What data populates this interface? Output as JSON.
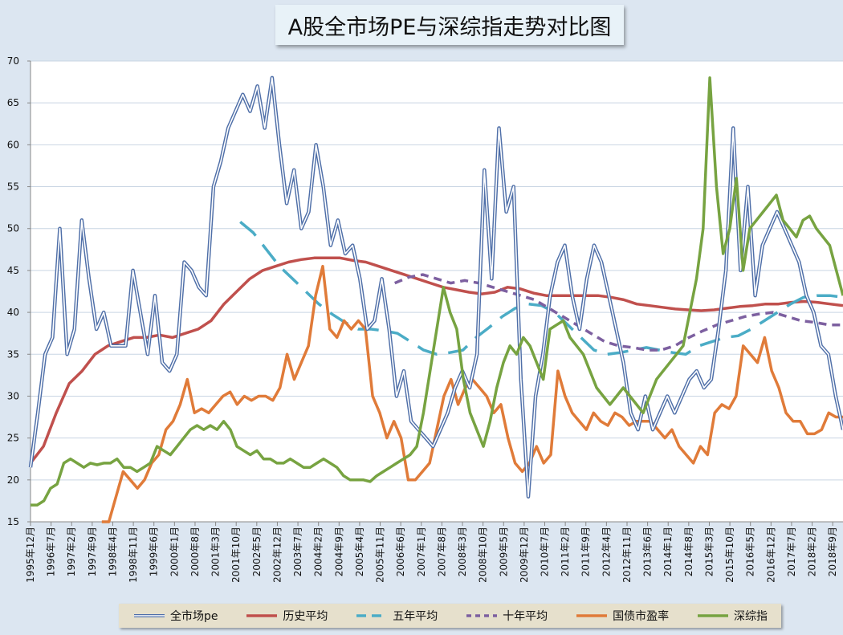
{
  "chart_data": {
    "type": "line",
    "title": "A股全市场PE与深综指走势对比图",
    "ylim": [
      15,
      70
    ],
    "yticks": [
      15,
      20,
      25,
      30,
      35,
      40,
      45,
      50,
      55,
      60,
      65,
      70
    ],
    "x_labels": [
      "1995年12月",
      "1996年7月",
      "1997年2月",
      "1997年9月",
      "1998年4月",
      "1998年11月",
      "1999年6月",
      "2000年1月",
      "2000年8月",
      "2001年3月",
      "2001年10月",
      "2002年5月",
      "2002年12月",
      "2003年7月",
      "2004年2月",
      "2004年9月",
      "2005年4月",
      "2005年11月",
      "2006年6月",
      "2007年1月",
      "2007年8月",
      "2008年3月",
      "2008年10月",
      "2009年5月",
      "2009年12月",
      "2010年7月",
      "2011年2月",
      "2011年9月",
      "2012年4月",
      "2012年11月",
      "2013年6月",
      "2014年1月",
      "2014年8月",
      "2015年3月",
      "2015年10月",
      "2016年5月",
      "2016年12月",
      "2017年7月",
      "2018年2月",
      "2018年9月"
    ],
    "series": [
      {
        "name": "全市场pe",
        "color": "#4f6fa8",
        "style": "double",
        "values": [
          21.5,
          28,
          35,
          37,
          50,
          35,
          38,
          51,
          44,
          38,
          40,
          36,
          36,
          36,
          45,
          40,
          35,
          42,
          34,
          33,
          35,
          46,
          45,
          43,
          42,
          55,
          58,
          62,
          64,
          66,
          64,
          67,
          62,
          68,
          60,
          53,
          57,
          50,
          52,
          60,
          55,
          48,
          51,
          47,
          48,
          44,
          38,
          39,
          44,
          38,
          30,
          33,
          27,
          26,
          25,
          24,
          26,
          28,
          31,
          33,
          31,
          35,
          57,
          44,
          62,
          52,
          55,
          32,
          18,
          30,
          35,
          42,
          46,
          48,
          42,
          38,
          44,
          48,
          46,
          42,
          38,
          34,
          28,
          26,
          30,
          26,
          28,
          30,
          28,
          30,
          32,
          33,
          31,
          32,
          38,
          45,
          62,
          45,
          55,
          42,
          48,
          50,
          52,
          50,
          48,
          46,
          42,
          40,
          36,
          35,
          30,
          26
        ]
      },
      {
        "name": "历史平均",
        "color": "#c0504d",
        "style": "solid",
        "values": [
          22,
          24,
          28,
          31.5,
          33,
          35,
          36,
          36.5,
          37,
          37,
          37.3,
          37,
          37.5,
          38,
          39,
          41,
          42.5,
          44,
          45,
          45.5,
          46,
          46.3,
          46.5,
          46.5,
          46.5,
          46.2,
          46,
          45.5,
          45,
          44.5,
          44,
          43.5,
          43,
          42.7,
          42.4,
          42.2,
          42.4,
          43,
          42.8,
          42.3,
          42,
          42,
          42,
          42,
          42,
          41.8,
          41.5,
          41,
          40.8,
          40.6,
          40.4,
          40.3,
          40.2,
          40.3,
          40.5,
          40.7,
          40.8,
          41,
          41,
          41.2,
          41.3,
          41.2,
          41,
          40.8
        ]
      },
      {
        "name": "五年平均",
        "color": "#4bacc6",
        "style": "dash",
        "values": [
          null,
          null,
          null,
          null,
          null,
          null,
          null,
          null,
          null,
          null,
          null,
          null,
          null,
          null,
          null,
          null,
          50.8,
          49.5,
          47.5,
          45.5,
          44,
          42.5,
          41,
          39.8,
          38.8,
          38,
          38,
          37.8,
          37.5,
          36.5,
          35.5,
          35,
          35.2,
          35.5,
          37,
          38.2,
          39.5,
          40.5,
          41,
          40.8,
          40,
          38.5,
          37,
          35.5,
          35,
          35.2,
          35.5,
          35.8,
          35.5,
          35.2,
          35,
          36,
          36.5,
          37,
          37.2,
          38,
          39,
          40,
          41,
          41.8,
          42,
          42,
          41.8
        ]
      },
      {
        "name": "十年平均",
        "color": "#7d60a0",
        "style": "shortdash",
        "values": [
          null,
          null,
          null,
          null,
          null,
          null,
          null,
          null,
          null,
          null,
          null,
          null,
          null,
          null,
          null,
          null,
          null,
          null,
          null,
          null,
          null,
          null,
          null,
          null,
          null,
          null,
          43.5,
          44.2,
          44.5,
          44,
          43.5,
          43.8,
          43.5,
          43,
          42.5,
          42,
          41.5,
          40.5,
          39.5,
          38.5,
          37.5,
          36.5,
          36,
          35.8,
          35.5,
          35.5,
          36,
          37,
          37.8,
          38.5,
          39,
          39.5,
          39.8,
          40,
          39.5,
          39,
          38.8,
          38.5,
          38.5
        ]
      },
      {
        "name": "国债市盈率",
        "color": "#e07b39",
        "style": "solid",
        "values": [
          null,
          null,
          null,
          null,
          null,
          null,
          null,
          null,
          null,
          null,
          15,
          15,
          18,
          21,
          20,
          19,
          20,
          22,
          23,
          26,
          27,
          29,
          32,
          28,
          28.5,
          28,
          29,
          30,
          30.5,
          29,
          30,
          29.5,
          30,
          30,
          29.5,
          31,
          35,
          32,
          34,
          36,
          42,
          45.5,
          38,
          37,
          39,
          38,
          39,
          38,
          30,
          28,
          25,
          27,
          25,
          20,
          20,
          21,
          22,
          26,
          30,
          32,
          29,
          31,
          32,
          31,
          30,
          28,
          29,
          25,
          22,
          21,
          22,
          24,
          22,
          23,
          33,
          30,
          28,
          27,
          26,
          28,
          27,
          26.5,
          28,
          27.5,
          26.5,
          27,
          27,
          27,
          26,
          25,
          26,
          24,
          23,
          22,
          24,
          23,
          28,
          29,
          28.5,
          30,
          36,
          35,
          34,
          37,
          33,
          31,
          28,
          27,
          27,
          25.5,
          25.5,
          26,
          28,
          27.5,
          27.5
        ]
      },
      {
        "name": "深综指",
        "color": "#77a341",
        "style": "solid",
        "values": [
          17,
          17,
          17.5,
          19,
          19.5,
          22,
          22.5,
          22,
          21.5,
          22,
          21.8,
          22,
          22,
          22.5,
          21.5,
          21.5,
          21,
          21.5,
          22,
          24,
          23.5,
          23,
          24,
          25,
          26,
          26.5,
          26,
          26.5,
          26,
          27,
          26,
          24,
          23.5,
          23,
          23.5,
          22.5,
          22.5,
          22,
          22,
          22.5,
          22,
          21.5,
          21.5,
          22,
          22.5,
          22,
          21.5,
          20.5,
          20,
          20,
          20,
          19.8,
          20.5,
          21,
          21.5,
          22,
          22.5,
          23,
          24,
          28,
          33,
          38,
          43,
          40,
          38,
          32,
          28,
          26,
          24,
          27,
          31,
          34,
          36,
          35,
          37,
          36,
          34,
          32,
          38,
          38.5,
          39,
          37,
          36,
          35,
          33,
          31,
          30,
          29,
          30,
          31,
          30,
          29,
          28,
          30,
          32,
          33,
          34,
          35,
          36,
          40,
          44,
          50,
          68,
          55,
          47,
          50,
          56,
          45,
          50,
          51,
          52,
          53,
          54,
          51,
          50,
          49,
          51,
          51.5,
          50,
          49,
          48,
          45,
          42
        ]
      }
    ]
  }
}
